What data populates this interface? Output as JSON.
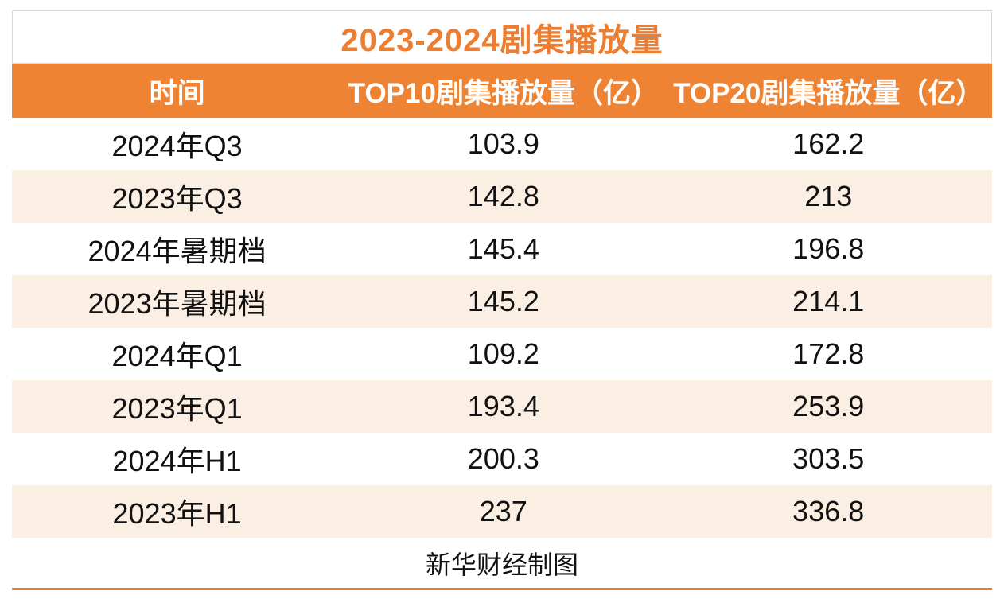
{
  "title": "2023-2024剧集播放量",
  "source_note": "新华财经制图",
  "colors": {
    "accent_orange": "#ee8433",
    "title_orange": "#ed7d31",
    "banded_row_cream": "#fbeee3",
    "border_gray": "#d9d9d9",
    "text_black": "#111111",
    "header_text_white": "#ffffff"
  },
  "chart_data": {
    "type": "table",
    "title": "2023-2024剧集播放量",
    "columns": [
      "时间",
      "TOP10剧集播放量（亿）",
      "TOP20剧集播放量（亿）"
    ],
    "rows": [
      [
        "2024年Q3",
        "103.9",
        "162.2"
      ],
      [
        "2023年Q3",
        "142.8",
        "213"
      ],
      [
        "2024年暑期档",
        "145.4",
        "196.8"
      ],
      [
        "2023年暑期档",
        "145.2",
        "214.1"
      ],
      [
        "2024年Q1",
        "109.2",
        "172.8"
      ],
      [
        "2023年Q1",
        "193.4",
        "253.9"
      ],
      [
        "2024年H1",
        "200.3",
        "303.5"
      ],
      [
        "2023年H1",
        "237",
        "336.8"
      ]
    ],
    "footer": "新华财经制图",
    "layout": {
      "banded_rows": "alternating white and cream, 2023 rows shaded",
      "gridlines": "none",
      "alignment": "all cells centered"
    }
  }
}
